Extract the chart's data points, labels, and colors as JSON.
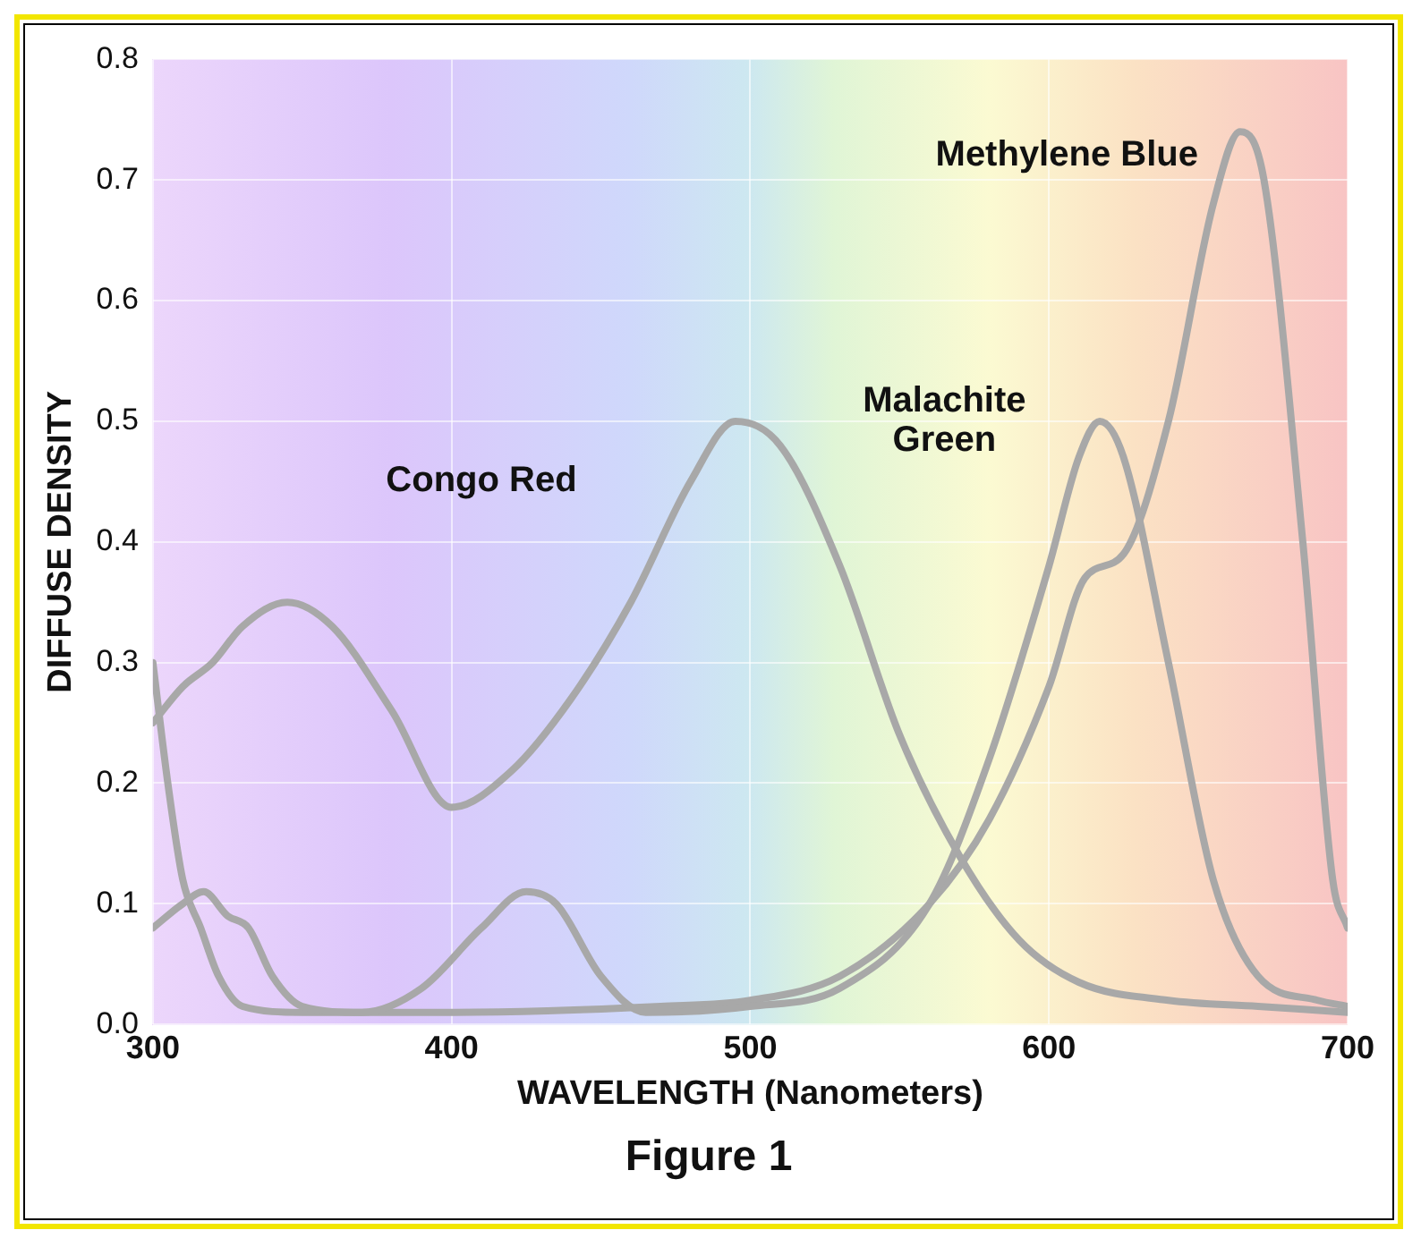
{
  "chart_data": {
    "type": "line",
    "xlabel": "WAVELENGTH (Nanometers)",
    "ylabel": "DIFFUSE DENSITY",
    "annotations": [
      "Figure 1"
    ],
    "xlim": [
      300,
      700
    ],
    "xticks": [
      300,
      400,
      500,
      600,
      700
    ],
    "ylim": [
      0,
      0.8
    ],
    "yticks": [
      {
        "value": 0,
        "label": "0.0"
      },
      0.1,
      0.2,
      0.3,
      0.4,
      0.5,
      0.6,
      0.7,
      0.8
    ],
    "grid": true,
    "legend": false,
    "marker": "none",
    "line_style": "solid",
    "series": [
      {
        "name": "Congo Red",
        "color": "#a8a8a8",
        "x": [
          300,
          310,
          320,
          330,
          345,
          360,
          380,
          400,
          420,
          440,
          460,
          480,
          495,
          510,
          530,
          550,
          570,
          590,
          610,
          640,
          670,
          700
        ],
        "values": [
          0.25,
          0.28,
          0.3,
          0.33,
          0.35,
          0.33,
          0.26,
          0.18,
          0.21,
          0.27,
          0.35,
          0.45,
          0.5,
          0.48,
          0.38,
          0.24,
          0.14,
          0.07,
          0.035,
          0.02,
          0.015,
          0.01
        ]
      },
      {
        "name": "Malachite Green",
        "color": "#a8a8a8",
        "x": [
          300,
          310,
          317,
          325,
          332,
          340,
          350,
          370,
          390,
          410,
          425,
          435,
          450,
          465,
          500,
          530,
          560,
          580,
          600,
          610,
          617,
          625,
          640,
          655,
          670,
          690,
          700
        ],
        "values": [
          0.08,
          0.1,
          0.11,
          0.09,
          0.08,
          0.04,
          0.015,
          0.01,
          0.03,
          0.08,
          0.11,
          0.1,
          0.04,
          0.01,
          0.015,
          0.03,
          0.1,
          0.22,
          0.38,
          0.47,
          0.5,
          0.47,
          0.3,
          0.12,
          0.04,
          0.02,
          0.015
        ]
      },
      {
        "name": "Methylene Blue",
        "color": "#a8a8a8",
        "x": [
          300,
          305,
          310,
          316,
          322,
          330,
          350,
          400,
          470,
          500,
          530,
          560,
          580,
          600,
          612,
          625,
          640,
          655,
          664,
          672,
          685,
          695,
          700
        ],
        "values": [
          0.3,
          0.2,
          0.12,
          0.08,
          0.04,
          0.015,
          0.01,
          0.01,
          0.015,
          0.02,
          0.04,
          0.1,
          0.17,
          0.28,
          0.37,
          0.39,
          0.5,
          0.68,
          0.74,
          0.7,
          0.4,
          0.12,
          0.08
        ]
      }
    ]
  }
}
